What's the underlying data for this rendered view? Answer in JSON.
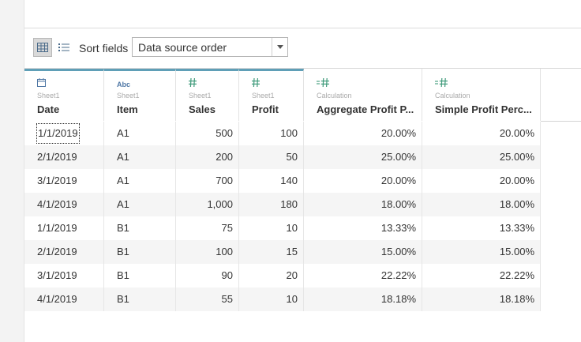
{
  "toolbar": {
    "grid_view_icon": "grid-view-icon",
    "list_view_icon": "list-view-icon",
    "sort_label": "Sort fields",
    "sort_value": "Data source order"
  },
  "columns": [
    {
      "icon": "calendar-icon",
      "source": "Sheet1",
      "name": "Date",
      "align": "left"
    },
    {
      "icon": "abc-string-icon",
      "icon_text": "Abc",
      "source": "Sheet1",
      "name": "Item",
      "align": "left"
    },
    {
      "icon": "number-hash-icon",
      "source": "Sheet1",
      "name": "Sales",
      "align": "right"
    },
    {
      "icon": "number-hash-icon",
      "source": "Sheet1",
      "name": "Profit",
      "align": "right"
    },
    {
      "icon": "calculated-number-icon",
      "source": "Calculation",
      "name": "Aggregate Profit P...",
      "align": "right"
    },
    {
      "icon": "calculated-number-icon",
      "source": "Calculation",
      "name": "Simple Profit Perc...",
      "align": "right"
    }
  ],
  "rows": [
    [
      "1/1/2019",
      "A1",
      "500",
      "100",
      "20.00%",
      "20.00%"
    ],
    [
      "2/1/2019",
      "A1",
      "200",
      "50",
      "25.00%",
      "25.00%"
    ],
    [
      "3/1/2019",
      "A1",
      "700",
      "140",
      "20.00%",
      "20.00%"
    ],
    [
      "4/1/2019",
      "A1",
      "1,000",
      "180",
      "18.00%",
      "18.00%"
    ],
    [
      "1/1/2019",
      "B1",
      "75",
      "10",
      "13.33%",
      "13.33%"
    ],
    [
      "2/1/2019",
      "B1",
      "100",
      "15",
      "15.00%",
      "15.00%"
    ],
    [
      "3/1/2019",
      "B1",
      "90",
      "20",
      "22.22%",
      "22.22%"
    ],
    [
      "4/1/2019",
      "B1",
      "55",
      "10",
      "18.18%",
      "18.18%"
    ]
  ],
  "colors": {
    "header_accent": "#5f9fb7",
    "field_icon_green": "#3e9a7a",
    "field_icon_blue": "#4f77a5",
    "row_alt": "#f5f5f5"
  }
}
